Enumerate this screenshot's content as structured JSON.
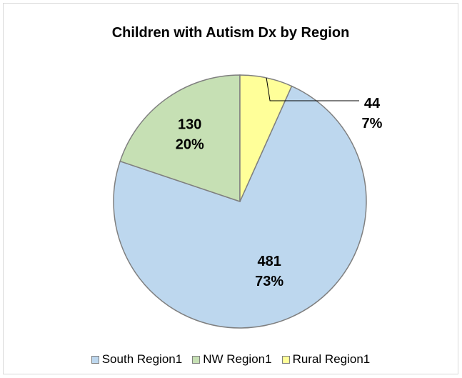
{
  "chart_data": {
    "type": "pie",
    "title": "Children with Autism Dx by Region",
    "categories": [
      "South Region1",
      "NW Region1",
      "Rural Region1"
    ],
    "values": [
      481,
      130,
      44
    ],
    "percent_labels": [
      "73%",
      "20%",
      "7%"
    ],
    "value_labels": [
      "481",
      "130",
      "44"
    ],
    "colors": [
      "#bdd7ee",
      "#c6e0b4",
      "#ffff99"
    ],
    "slice_border_color": "#7f7f7f",
    "legend": "bottom"
  }
}
